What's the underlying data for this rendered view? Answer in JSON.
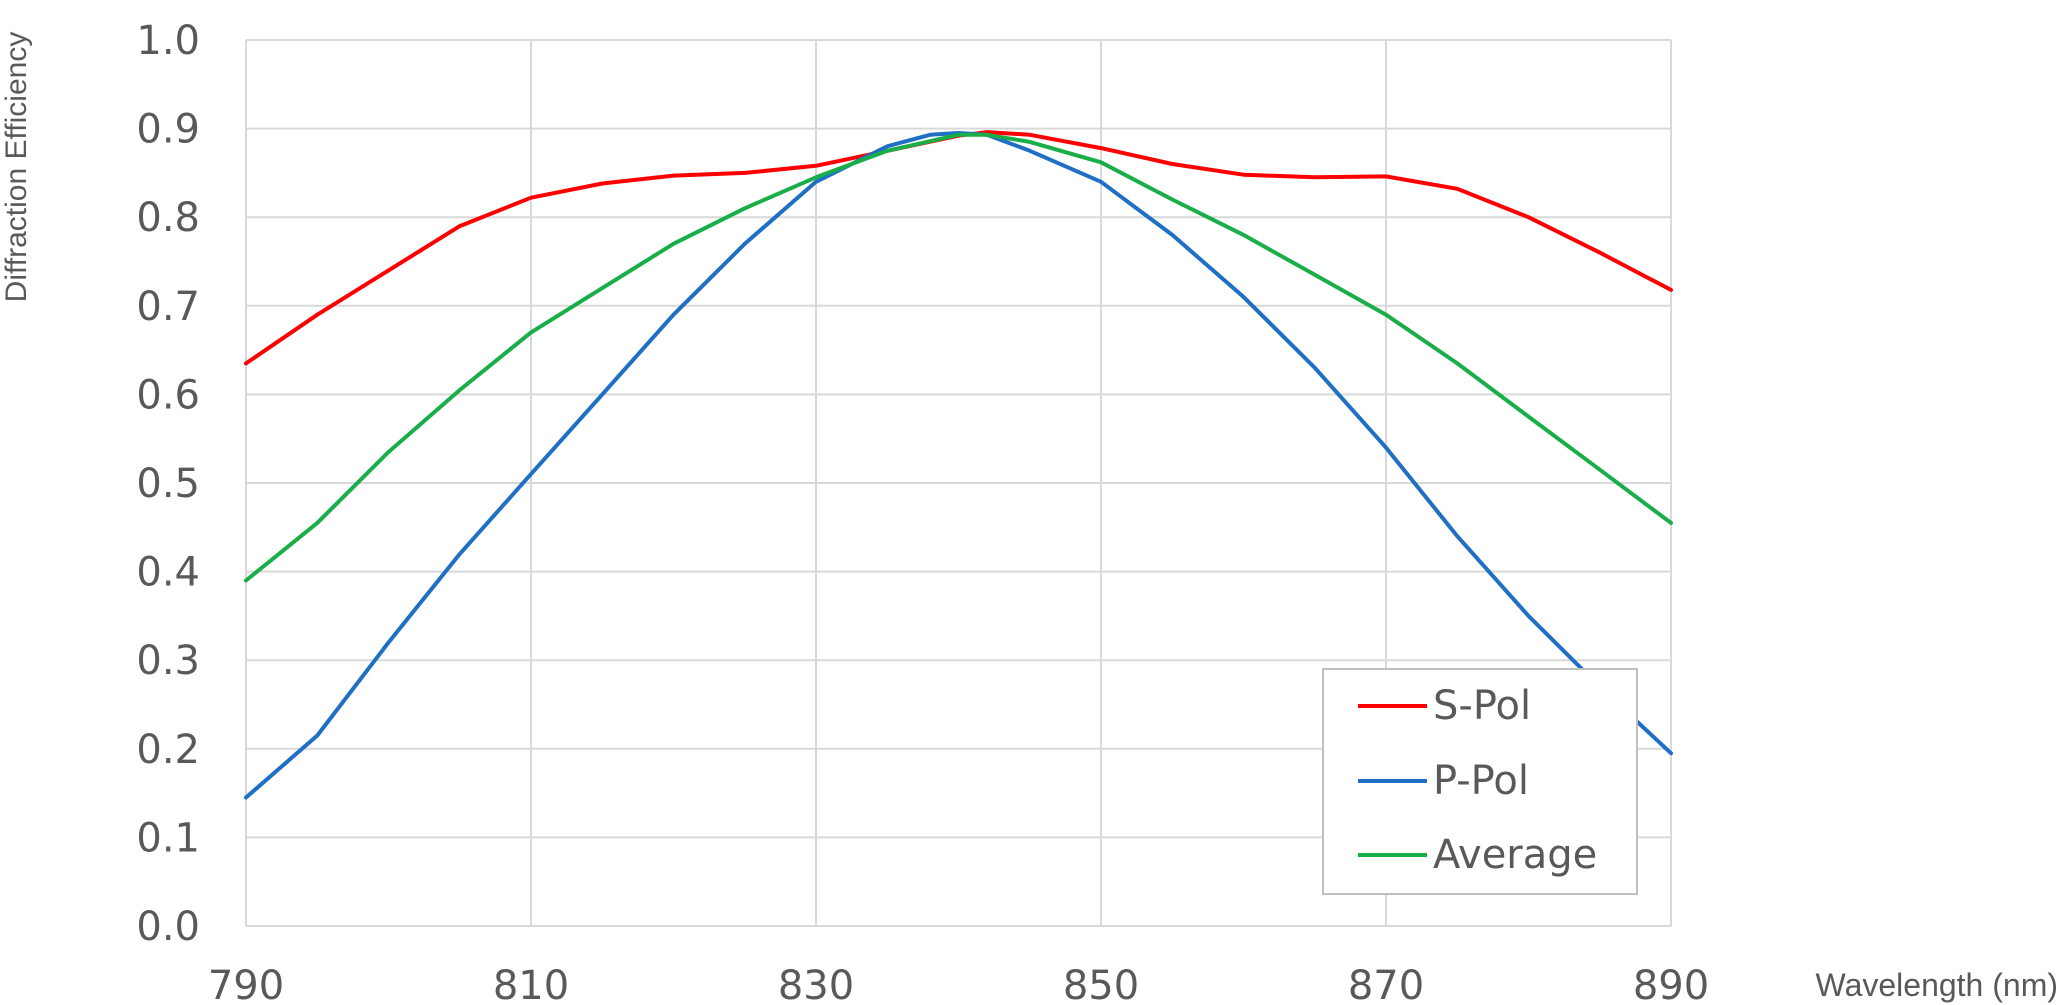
{
  "chart_data": {
    "type": "line",
    "xlabel": "Wavelength (nm)",
    "ylabel": "Diffraction Efficiency",
    "xlim": [
      790,
      890
    ],
    "ylim": [
      0.0,
      1.0
    ],
    "x_ticks": [
      "790",
      "810",
      "830",
      "850",
      "870",
      "890"
    ],
    "y_ticks": [
      "0.0",
      "0.1",
      "0.2",
      "0.3",
      "0.4",
      "0.5",
      "0.6",
      "0.7",
      "0.8",
      "0.9",
      "1.0"
    ],
    "grid": true,
    "legend_position": "bottom-right",
    "series": [
      {
        "name": "S-Pol",
        "color": "#ff0000",
        "points": [
          [
            790,
            0.635
          ],
          [
            795,
            0.69
          ],
          [
            800,
            0.74
          ],
          [
            805,
            0.79
          ],
          [
            810,
            0.822
          ],
          [
            815,
            0.838
          ],
          [
            820,
            0.847
          ],
          [
            825,
            0.85
          ],
          [
            830,
            0.858
          ],
          [
            835,
            0.875
          ],
          [
            840,
            0.892
          ],
          [
            842,
            0.896
          ],
          [
            845,
            0.893
          ],
          [
            850,
            0.878
          ],
          [
            855,
            0.86
          ],
          [
            860,
            0.848
          ],
          [
            865,
            0.845
          ],
          [
            870,
            0.846
          ],
          [
            875,
            0.832
          ],
          [
            880,
            0.8
          ],
          [
            885,
            0.76
          ],
          [
            890,
            0.718
          ]
        ]
      },
      {
        "name": "P-Pol",
        "color": "#1f6fc5",
        "points": [
          [
            790,
            0.145
          ],
          [
            795,
            0.215
          ],
          [
            800,
            0.32
          ],
          [
            805,
            0.42
          ],
          [
            810,
            0.51
          ],
          [
            815,
            0.6
          ],
          [
            820,
            0.69
          ],
          [
            825,
            0.77
          ],
          [
            830,
            0.84
          ],
          [
            835,
            0.88
          ],
          [
            838,
            0.893
          ],
          [
            840,
            0.895
          ],
          [
            842,
            0.893
          ],
          [
            845,
            0.875
          ],
          [
            850,
            0.84
          ],
          [
            855,
            0.78
          ],
          [
            860,
            0.71
          ],
          [
            865,
            0.63
          ],
          [
            870,
            0.54
          ],
          [
            875,
            0.44
          ],
          [
            880,
            0.35
          ],
          [
            885,
            0.27
          ],
          [
            890,
            0.195
          ]
        ]
      },
      {
        "name": "Average",
        "color": "#1aae48",
        "points": [
          [
            790,
            0.39
          ],
          [
            795,
            0.455
          ],
          [
            800,
            0.535
          ],
          [
            805,
            0.605
          ],
          [
            810,
            0.67
          ],
          [
            815,
            0.72
          ],
          [
            820,
            0.77
          ],
          [
            825,
            0.81
          ],
          [
            830,
            0.845
          ],
          [
            835,
            0.875
          ],
          [
            840,
            0.893
          ],
          [
            842,
            0.893
          ],
          [
            845,
            0.885
          ],
          [
            850,
            0.862
          ],
          [
            855,
            0.82
          ],
          [
            860,
            0.78
          ],
          [
            865,
            0.735
          ],
          [
            870,
            0.69
          ],
          [
            875,
            0.635
          ],
          [
            880,
            0.575
          ],
          [
            885,
            0.515
          ],
          [
            890,
            0.455
          ]
        ]
      }
    ]
  }
}
